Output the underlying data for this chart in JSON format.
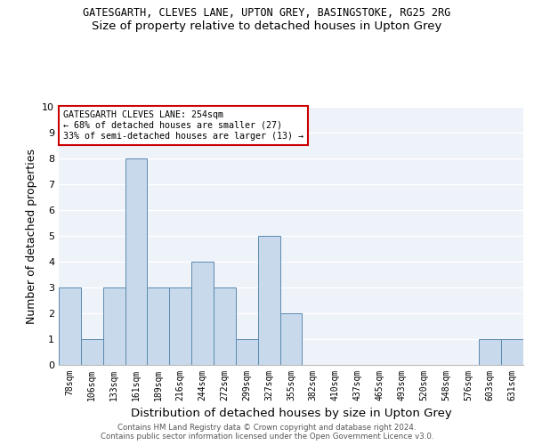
{
  "title_line1": "GATESGARTH, CLEVES LANE, UPTON GREY, BASINGSTOKE, RG25 2RG",
  "title_line2": "Size of property relative to detached houses in Upton Grey",
  "xlabel": "Distribution of detached houses by size in Upton Grey",
  "ylabel": "Number of detached properties",
  "categories": [
    "78sqm",
    "106sqm",
    "133sqm",
    "161sqm",
    "189sqm",
    "216sqm",
    "244sqm",
    "272sqm",
    "299sqm",
    "327sqm",
    "355sqm",
    "382sqm",
    "410sqm",
    "437sqm",
    "465sqm",
    "493sqm",
    "520sqm",
    "548sqm",
    "576sqm",
    "603sqm",
    "631sqm"
  ],
  "values": [
    3,
    1,
    3,
    8,
    3,
    3,
    4,
    3,
    1,
    5,
    2,
    0,
    0,
    0,
    0,
    0,
    0,
    0,
    0,
    1,
    1
  ],
  "bar_color": "#c9d9ec",
  "bar_edge_color": "#5a8ab0",
  "annotation_text": "GATESGARTH CLEVES LANE: 254sqm\n← 68% of detached houses are smaller (27)\n33% of semi-detached houses are larger (13) →",
  "annotation_box_color": "#ffffff",
  "annotation_box_edge_color": "#cc0000",
  "ylim": [
    0,
    10
  ],
  "yticks": [
    0,
    1,
    2,
    3,
    4,
    5,
    6,
    7,
    8,
    9,
    10
  ],
  "background_color": "#eef2f9",
  "grid_color": "#ffffff",
  "footer_line1": "Contains HM Land Registry data © Crown copyright and database right 2024.",
  "footer_line2": "Contains public sector information licensed under the Open Government Licence v3.0."
}
